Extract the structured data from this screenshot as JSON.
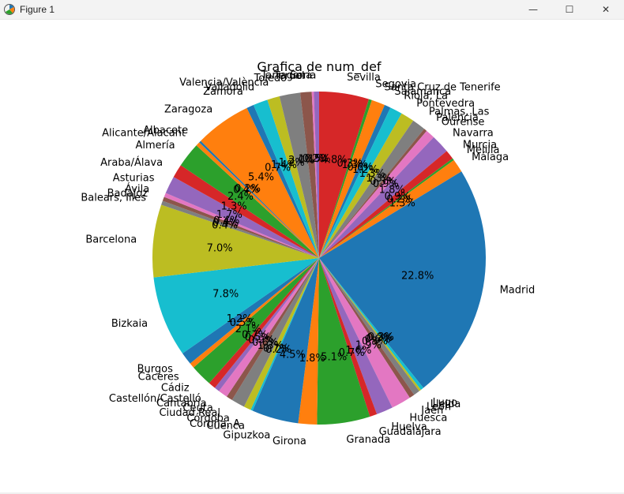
{
  "window": {
    "title": "Figure 1",
    "minimize_glyph": "—",
    "maximize_glyph": "☐",
    "close_glyph": "✕",
    "icon": "matplotlib-icon"
  },
  "chart_data": {
    "type": "pie",
    "title": "Grafica de num_def",
    "start_angle_deg": 90,
    "counterclock": false,
    "slices": [
      {
        "label": "Sevilla",
        "value": 4.8,
        "pct_label": "4.8%",
        "color": "#d62728"
      },
      {
        "label": "Segovia",
        "value": 0.3,
        "pct_label": "0.3%",
        "color": "#2ca02c"
      },
      {
        "label": "Santa Cruz de Tenerife",
        "value": 1.3,
        "pct_label": "1.3%",
        "color": "#ff7f0e"
      },
      {
        "label": "Salamanca",
        "value": 0.6,
        "pct_label": "0.6%",
        "color": "#1f77b4"
      },
      {
        "label": "Rioja, La",
        "value": 1.2,
        "pct_label": "1.2%",
        "color": "#17becf"
      },
      {
        "label": "Pontevedra",
        "value": 1.3,
        "pct_label": "1.3%",
        "color": "#bcbd22"
      },
      {
        "label": "Palmas, Las",
        "value": 1.3,
        "pct_label": "1.3%",
        "color": "#7f7f7f"
      },
      {
        "label": "Palencia",
        "value": 0.3,
        "pct_label": "0.3%",
        "color": "#8c564b"
      },
      {
        "label": "Ourense",
        "value": 0.9,
        "pct_label": "0.9%",
        "color": "#e377c2"
      },
      {
        "label": "Navarra",
        "value": 1.8,
        "pct_label": "1.8%",
        "color": "#9467bd"
      },
      {
        "label": "Murcia",
        "value": 0.9,
        "pct_label": "0.9%",
        "color": "#d62728"
      },
      {
        "label": "Melilla",
        "value": 0.2,
        "pct_label": "0.2%",
        "color": "#2ca02c"
      },
      {
        "label": "Málaga",
        "value": 1.3,
        "pct_label": "1.3%",
        "color": "#ff7f0e"
      },
      {
        "label": "Madrid",
        "value": 22.8,
        "pct_label": "22.8%",
        "color": "#1f77b4"
      },
      {
        "label": "Lugo",
        "value": 0.3,
        "pct_label": "0.3%",
        "color": "#17becf"
      },
      {
        "label": "Lleida",
        "value": 0.2,
        "pct_label": "0.2%",
        "color": "#bcbd22"
      },
      {
        "label": "León",
        "value": 0.6,
        "pct_label": "0.6%",
        "color": "#7f7f7f"
      },
      {
        "label": "Jaén",
        "value": 0.5,
        "pct_label": "0.5%",
        "color": "#8c564b"
      },
      {
        "label": "Huesca",
        "value": 1.9,
        "pct_label": "1.9%",
        "color": "#e377c2"
      },
      {
        "label": "Huelva",
        "value": 1.6,
        "pct_label": "1.6%",
        "color": "#9467bd"
      },
      {
        "label": "Guadalajara",
        "value": 0.7,
        "pct_label": "0.7%",
        "color": "#d62728"
      },
      {
        "label": "Granada",
        "value": 5.1,
        "pct_label": "5.1%",
        "color": "#2ca02c"
      },
      {
        "label": "Girona",
        "value": 1.8,
        "pct_label": "1.8%",
        "color": "#ff7f0e"
      },
      {
        "label": "Gipuzkoa",
        "value": 4.5,
        "pct_label": "4.5%",
        "color": "#1f77b4"
      },
      {
        "label": "Cuenca",
        "value": 0.2,
        "pct_label": "0.2%",
        "color": "#17becf"
      },
      {
        "label": "Coruña, A",
        "value": 0.7,
        "pct_label": "0.7%",
        "color": "#bcbd22"
      },
      {
        "label": "Córdoba",
        "value": 1.3,
        "pct_label": "1.3%",
        "color": "#7f7f7f"
      },
      {
        "label": "Ciudad Real",
        "value": 0.6,
        "pct_label": "0.6%",
        "color": "#8c564b"
      },
      {
        "label": "Ceuta",
        "value": 0.9,
        "pct_label": "0.9%",
        "color": "#e377c2"
      },
      {
        "label": "Cantabria",
        "value": 0.5,
        "pct_label": "0.5%",
        "color": "#9467bd"
      },
      {
        "label": "Castellón/Castelló",
        "value": 0.7,
        "pct_label": "0.7%",
        "color": "#d62728"
      },
      {
        "label": "Cádiz",
        "value": 2.1,
        "pct_label": "2.1%",
        "color": "#2ca02c"
      },
      {
        "label": "Cáceres",
        "value": 0.5,
        "pct_label": "0.5%",
        "color": "#ff7f0e"
      },
      {
        "label": "Burgos",
        "value": 1.2,
        "pct_label": "1.2%",
        "color": "#1f77b4"
      },
      {
        "label": "Bizkaia",
        "value": 7.8,
        "pct_label": "7.8%",
        "color": "#17becf"
      },
      {
        "label": "Barcelona",
        "value": 7.0,
        "pct_label": "7.0%",
        "color": "#bcbd22"
      },
      {
        "label": "Balears, Illes",
        "value": 0.4,
        "pct_label": "0.4%",
        "color": "#7f7f7f"
      },
      {
        "label": "Badajoz",
        "value": 0.4,
        "pct_label": "0.4%",
        "color": "#8c564b"
      },
      {
        "label": "Ávila",
        "value": 0.4,
        "pct_label": "0.4%",
        "color": "#e377c2"
      },
      {
        "label": "Asturias",
        "value": 1.7,
        "pct_label": "1.7%",
        "color": "#9467bd"
      },
      {
        "label": "Araba/Álava",
        "value": 1.3,
        "pct_label": "1.3%",
        "color": "#d62728"
      },
      {
        "label": "Almería",
        "value": 2.4,
        "pct_label": "2.4%",
        "color": "#2ca02c"
      },
      {
        "label": "Alicante/Alacant",
        "value": 0.4,
        "pct_label": "0.4%",
        "color": "#ff7f0e"
      },
      {
        "label": "Albacete",
        "value": 0.2,
        "pct_label": "0.2%",
        "color": "#1f77b4"
      },
      {
        "label": "Zaragoza",
        "value": 5.4,
        "pct_label": "5.4%",
        "color": "#ff7f0e"
      },
      {
        "label": "Zamora",
        "value": 0.7,
        "pct_label": "0.7%",
        "color": "#1f77b4"
      },
      {
        "label": "Valladolid",
        "value": 1.4,
        "pct_label": "1.4%",
        "color": "#17becf"
      },
      {
        "label": "Valencia/València",
        "value": 1.2,
        "pct_label": "1.2%",
        "color": "#bcbd22"
      },
      {
        "label": "Toledo",
        "value": 2.0,
        "pct_label": "2.0%",
        "color": "#7f7f7f"
      },
      {
        "label": "Teruel",
        "value": 1.1,
        "pct_label": "1.1%",
        "color": "#8c564b"
      },
      {
        "label": "Tarragona",
        "value": 0.2,
        "pct_label": "0.2%",
        "color": "#e377c2"
      },
      {
        "label": "Soria",
        "value": 0.5,
        "pct_label": "0.5%",
        "color": "#9467bd"
      }
    ]
  }
}
